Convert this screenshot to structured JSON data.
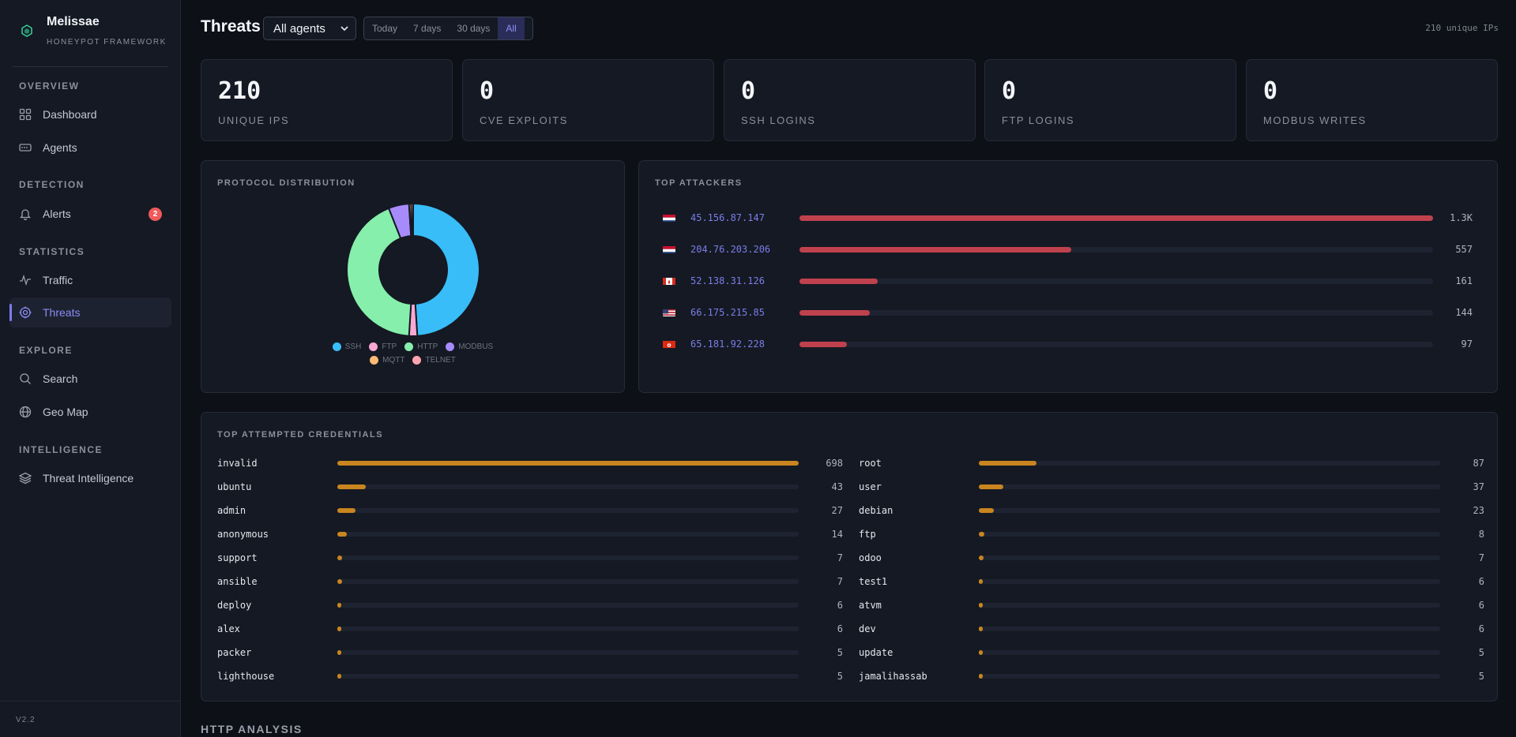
{
  "brand": {
    "name": "Melissae",
    "subtitle": "HONEYPOT FRAMEWORK",
    "version": "V2.2"
  },
  "sidebar": {
    "sections": [
      {
        "label": "OVERVIEW",
        "items": [
          {
            "label": "Dashboard",
            "icon": "grid-icon"
          },
          {
            "label": "Agents",
            "icon": "server-icon"
          }
        ]
      },
      {
        "label": "DETECTION",
        "items": [
          {
            "label": "Alerts",
            "icon": "bell-icon",
            "badge": "2"
          }
        ]
      },
      {
        "label": "STATISTICS",
        "items": [
          {
            "label": "Traffic",
            "icon": "activity-icon"
          },
          {
            "label": "Threats",
            "icon": "crosshair-icon",
            "active": true
          }
        ]
      },
      {
        "label": "EXPLORE",
        "items": [
          {
            "label": "Search",
            "icon": "search-icon"
          },
          {
            "label": "Geo Map",
            "icon": "globe-icon"
          }
        ]
      },
      {
        "label": "INTELLIGENCE",
        "items": [
          {
            "label": "Threat Intelligence",
            "icon": "layers-icon"
          }
        ]
      }
    ]
  },
  "header": {
    "title": "Threats",
    "agent_select": "All agents",
    "ranges": [
      "Today",
      "7 days",
      "30 days",
      "All"
    ],
    "active_range": "All",
    "unique_ips_note": "210 unique IPs"
  },
  "stats": [
    {
      "value": "210",
      "label": "UNIQUE IPS"
    },
    {
      "value": "0",
      "label": "CVE EXPLOITS"
    },
    {
      "value": "0",
      "label": "SSH LOGINS"
    },
    {
      "value": "0",
      "label": "FTP LOGINS"
    },
    {
      "value": "0",
      "label": "MODBUS WRITES"
    }
  ],
  "protocol": {
    "title": "PROTOCOL DISTRIBUTION",
    "chart_data": {
      "type": "pie",
      "categories": [
        "SSH",
        "FTP",
        "HTTP",
        "MODBUS",
        "MQTT",
        "TELNET"
      ],
      "values": [
        49,
        2,
        43,
        5,
        0.5,
        0.5
      ],
      "colors": [
        "#38bdf8",
        "#f9a8d4",
        "#86efac",
        "#a78bfa",
        "#fdba74",
        "#fda4af"
      ]
    }
  },
  "attackers": {
    "title": "TOP ATTACKERS",
    "max": 1300,
    "rows": [
      {
        "ip": "45.156.87.147",
        "count": "1.3K",
        "value": 1300,
        "flag": "nl"
      },
      {
        "ip": "204.76.203.206",
        "count": "557",
        "value": 557,
        "flag": "nl"
      },
      {
        "ip": "52.138.31.126",
        "count": "161",
        "value": 161,
        "flag": "ca"
      },
      {
        "ip": "66.175.215.85",
        "count": "144",
        "value": 144,
        "flag": "us"
      },
      {
        "ip": "65.181.92.228",
        "count": "97",
        "value": 97,
        "flag": "hk"
      }
    ]
  },
  "credentials": {
    "title": "TOP ATTEMPTED CREDENTIALS",
    "left": [
      {
        "name": "invalid",
        "count": 698
      },
      {
        "name": "ubuntu",
        "count": 43
      },
      {
        "name": "admin",
        "count": 27
      },
      {
        "name": "anonymous",
        "count": 14
      },
      {
        "name": "support",
        "count": 7
      },
      {
        "name": "ansible",
        "count": 7
      },
      {
        "name": "deploy",
        "count": 6
      },
      {
        "name": "alex",
        "count": 6
      },
      {
        "name": "packer",
        "count": 5
      },
      {
        "name": "lighthouse",
        "count": 5
      }
    ],
    "left_max": 698,
    "right": [
      {
        "name": "root",
        "count": 87
      },
      {
        "name": "user",
        "count": 37
      },
      {
        "name": "debian",
        "count": 23
      },
      {
        "name": "ftp",
        "count": 8
      },
      {
        "name": "odoo",
        "count": 7
      },
      {
        "name": "test1",
        "count": 6
      },
      {
        "name": "atvm",
        "count": 6
      },
      {
        "name": "dev",
        "count": 6
      },
      {
        "name": "update",
        "count": 5
      },
      {
        "name": "jamalihassab",
        "count": 5
      }
    ],
    "right_max": 698
  },
  "http_section": {
    "title": "HTTP ANALYSIS"
  }
}
